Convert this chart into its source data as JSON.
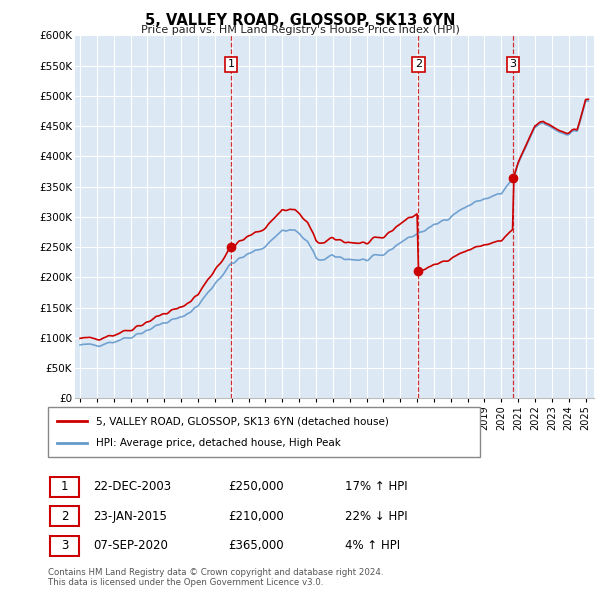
{
  "title": "5, VALLEY ROAD, GLOSSOP, SK13 6YN",
  "subtitle": "Price paid vs. HM Land Registry's House Price Index (HPI)",
  "ylim": [
    0,
    600000
  ],
  "yticks": [
    0,
    50000,
    100000,
    150000,
    200000,
    250000,
    300000,
    350000,
    400000,
    450000,
    500000,
    550000,
    600000
  ],
  "xlim_start": 1994.7,
  "xlim_end": 2025.5,
  "plot_bg_color": "#dce9f5",
  "grid_color": "#ffffff",
  "sale_color": "#cc0000",
  "hpi_color": "#6699cc",
  "vline_color": "#cc0000",
  "legend_label_sale": "5, VALLEY ROAD, GLOSSOP, SK13 6YN (detached house)",
  "legend_label_hpi": "HPI: Average price, detached house, High Peak",
  "sales": [
    {
      "date": 2003.97,
      "price": 250000,
      "label": "1"
    },
    {
      "date": 2015.07,
      "price": 210000,
      "label": "2"
    },
    {
      "date": 2020.68,
      "price": 365000,
      "label": "3"
    }
  ],
  "table_rows": [
    {
      "label": "1",
      "date": "22-DEC-2003",
      "price": "£250,000",
      "hpi": "17% ↑ HPI"
    },
    {
      "label": "2",
      "date": "23-JAN-2015",
      "price": "£210,000",
      "hpi": "22% ↓ HPI"
    },
    {
      "label": "3",
      "date": "07-SEP-2020",
      "price": "£365,000",
      "hpi": "4% ↑ HPI"
    }
  ],
  "footer": "Contains HM Land Registry data © Crown copyright and database right 2024.\nThis data is licensed under the Open Government Licence v3.0."
}
